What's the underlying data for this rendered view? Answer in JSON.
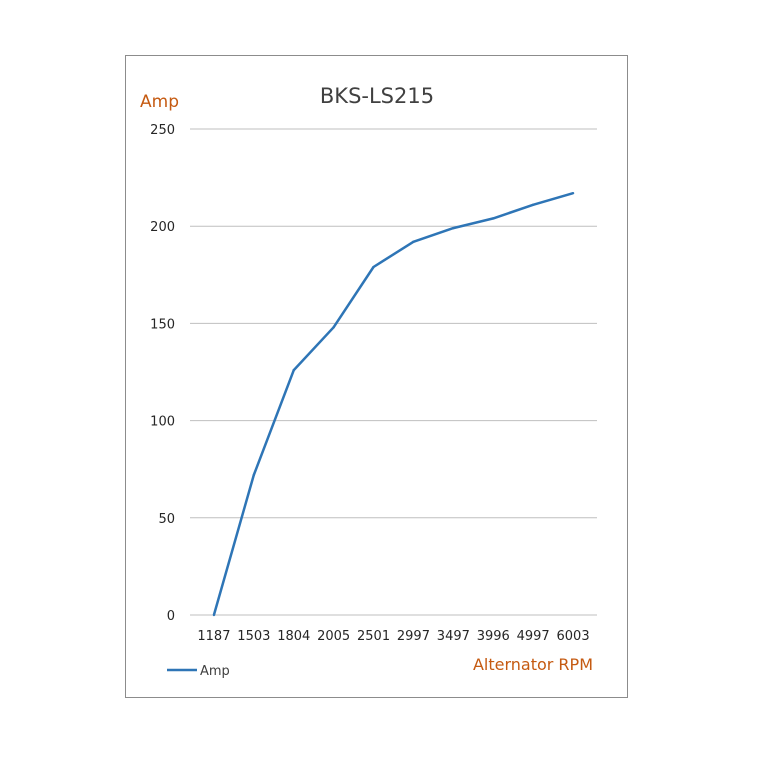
{
  "chart_data": {
    "type": "line",
    "title": "BKS-LS215",
    "xlabel": "Alternator RPM",
    "ylabel": "Amp",
    "categories": [
      "1187",
      "1503",
      "1804",
      "2005",
      "2501",
      "2997",
      "3497",
      "3996",
      "4997",
      "6003"
    ],
    "series": [
      {
        "name": "Amp",
        "values": [
          0,
          72,
          126,
          148,
          179,
          192,
          199,
          204,
          211,
          217
        ]
      }
    ],
    "ylim": [
      0,
      250
    ],
    "yticks": [
      "0",
      "50",
      "100",
      "150",
      "200",
      "250"
    ],
    "grid": true,
    "legend": "bottom-left",
    "colors": {
      "line": "#2e75b6",
      "grid": "#bfbfbf",
      "axis_title": "#c55a11",
      "title": "#404040"
    }
  }
}
